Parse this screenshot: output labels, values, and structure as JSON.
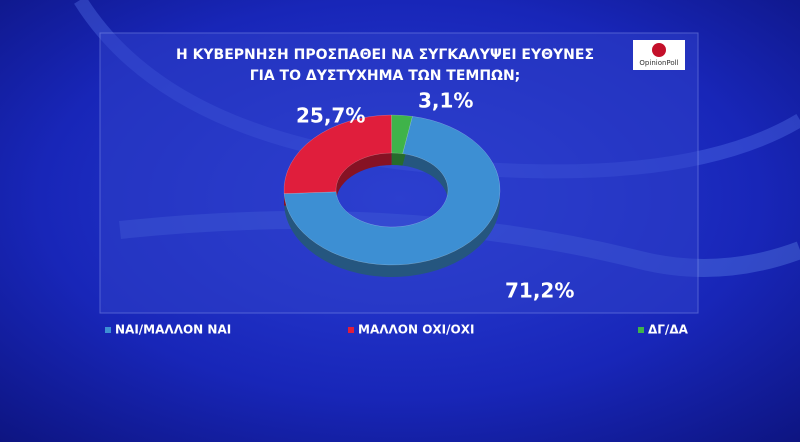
{
  "chart_data": {
    "type": "donut",
    "title": [
      "Η ΚΥΒΕΡΝΗΣΗ ΠΡΟΣΠΑΘΕΙ ΝΑ ΣΥΓΚΑΛΥΨΕΙ ΕΥΘΥΝΕΣ",
      "ΓΙΑ ΤΟ ΔΥΣΤΥΧΗΜΑ ΤΩΝ ΤΕΜΠΩΝ;"
    ],
    "logo": "OpinionPoll",
    "categories": [
      "ΝΑΙ/ΜΑΛΛΟΝ ΝΑΙ",
      "ΜΑΛΛΟΝ ΟΧΙ/ΟΧΙ",
      "ΔΓ/ΔΑ"
    ],
    "values": [
      71.2,
      25.7,
      3.1
    ],
    "value_labels": [
      "71,2%",
      "25,7%",
      "3,1%"
    ],
    "colors": [
      "#3d8fd3",
      "#e01e3c",
      "#3fb34a"
    ]
  }
}
